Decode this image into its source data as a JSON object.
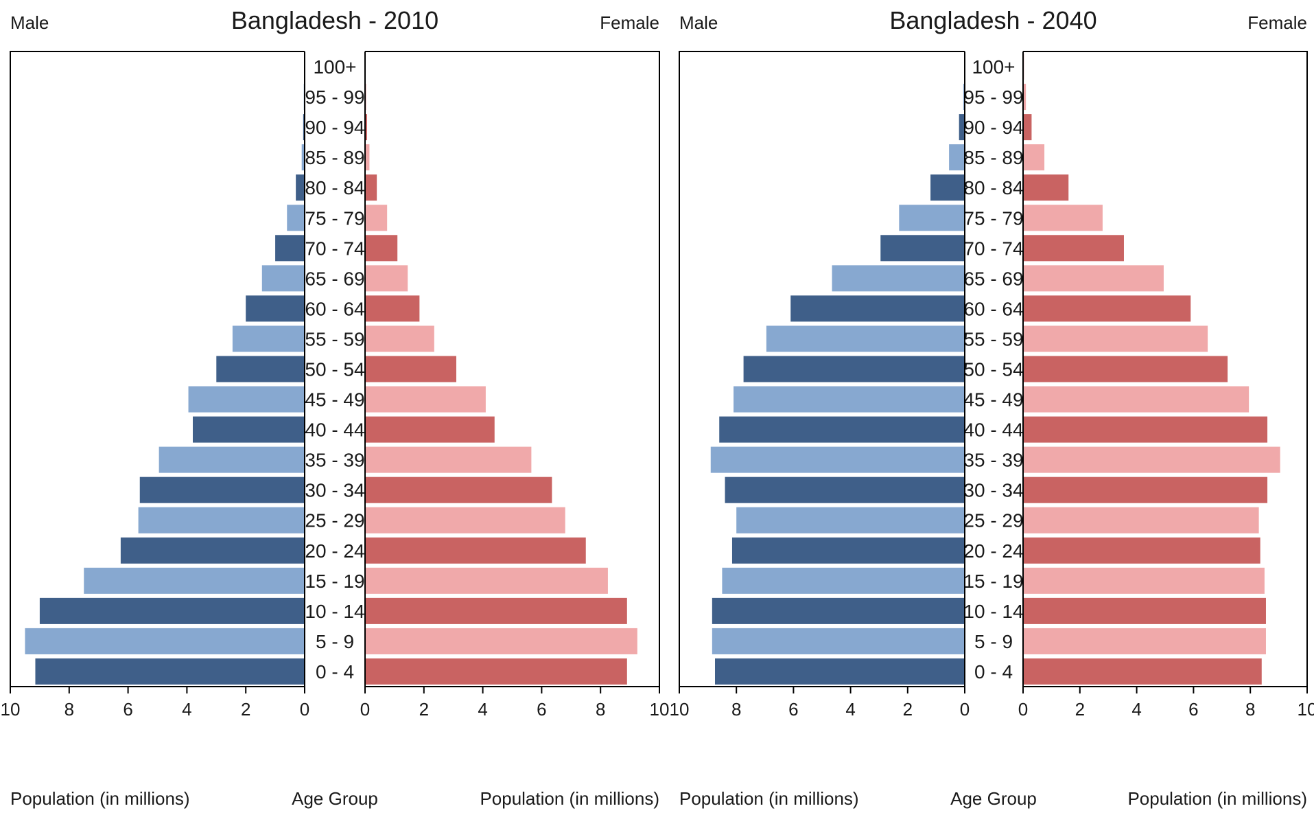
{
  "colors": {
    "male_dark": "#3f5f89",
    "male_light": "#87a8d0",
    "female_dark": "#c96362",
    "female_light": "#f0a9aa",
    "axis": "#000000"
  },
  "chart_data": [
    {
      "type": "bar",
      "orientation": "horizontal",
      "title": "Bangladesh - 2010",
      "left_label": "Male",
      "right_label": "Female",
      "center_label": "Age Group",
      "xlabel_left": "Population (in millions)",
      "xlabel_right": "Population (in millions)",
      "xlim": [
        0,
        10
      ],
      "xticks": [
        "0",
        "2",
        "4",
        "6",
        "8",
        "10"
      ],
      "categories": [
        "100+",
        "95 - 99",
        "90 - 94",
        "85 - 89",
        "80 - 84",
        "75 - 79",
        "70 - 74",
        "65 - 69",
        "60 - 64",
        "55 - 59",
        "50 - 54",
        "45 - 49",
        "40 - 44",
        "35 - 39",
        "30 - 34",
        "25 - 29",
        "20 - 24",
        "15 - 19",
        "10 - 14",
        "5 - 9",
        "0 - 4"
      ],
      "series": [
        {
          "name": "Male",
          "values": [
            0.02,
            0.03,
            0.05,
            0.1,
            0.3,
            0.6,
            1.0,
            1.45,
            2.0,
            2.45,
            3.0,
            3.95,
            3.8,
            4.95,
            5.6,
            5.65,
            6.25,
            7.5,
            9.0,
            9.5,
            9.15
          ]
        },
        {
          "name": "Female",
          "values": [
            0.02,
            0.04,
            0.07,
            0.15,
            0.4,
            0.75,
            1.1,
            1.45,
            1.85,
            2.35,
            3.1,
            4.1,
            4.4,
            5.65,
            6.35,
            6.8,
            7.5,
            8.25,
            8.9,
            9.25,
            8.9
          ]
        }
      ]
    },
    {
      "type": "bar",
      "orientation": "horizontal",
      "title": "Bangladesh - 2040",
      "left_label": "Male",
      "right_label": "Female",
      "center_label": "Age Group",
      "xlabel_left": "Population (in millions)",
      "xlabel_right": "Population (in millions)",
      "xlim": [
        0,
        10
      ],
      "xticks": [
        "0",
        "2",
        "4",
        "6",
        "8",
        "10"
      ],
      "categories": [
        "100+",
        "95 - 99",
        "90 - 94",
        "85 - 89",
        "80 - 84",
        "75 - 79",
        "70 - 74",
        "65 - 69",
        "60 - 64",
        "55 - 59",
        "50 - 54",
        "45 - 49",
        "40 - 44",
        "35 - 39",
        "30 - 34",
        "25 - 29",
        "20 - 24",
        "15 - 19",
        "10 - 14",
        "5 - 9",
        "0 - 4"
      ],
      "series": [
        {
          "name": "Male",
          "values": [
            0.02,
            0.05,
            0.2,
            0.55,
            1.2,
            2.3,
            2.95,
            4.65,
            6.1,
            6.95,
            7.75,
            8.1,
            8.6,
            8.9,
            8.4,
            8.0,
            8.15,
            8.5,
            8.85,
            8.85,
            8.75
          ]
        },
        {
          "name": "Female",
          "values": [
            0.03,
            0.1,
            0.3,
            0.75,
            1.6,
            2.8,
            3.55,
            4.95,
            5.9,
            6.5,
            7.2,
            7.95,
            8.6,
            9.05,
            8.6,
            8.3,
            8.35,
            8.5,
            8.55,
            8.55,
            8.4
          ]
        }
      ]
    }
  ]
}
